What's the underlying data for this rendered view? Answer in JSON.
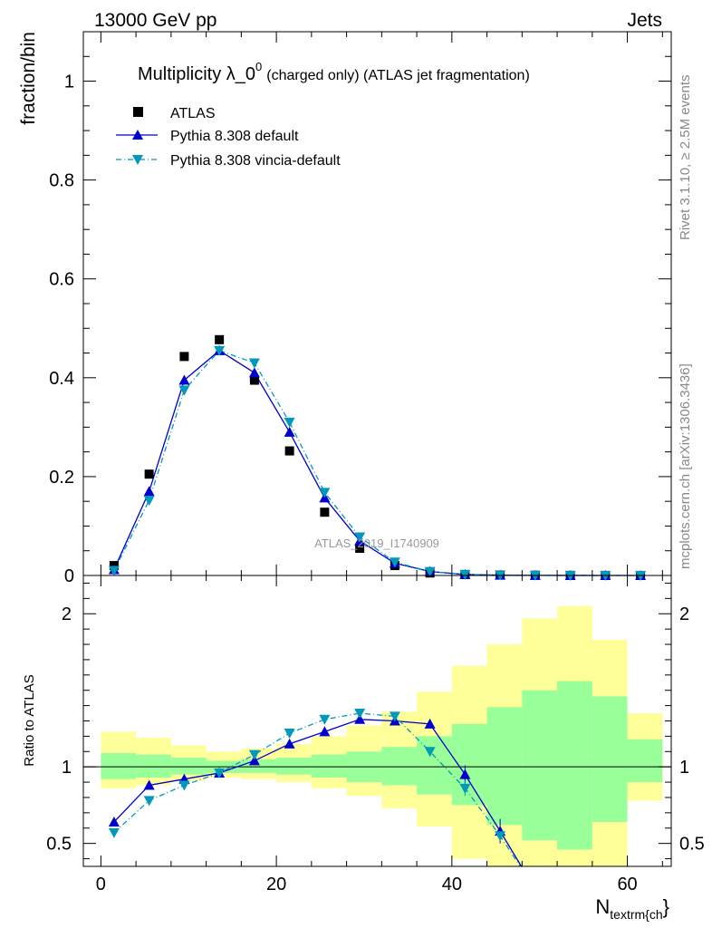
{
  "header": {
    "left": "13000 GeV pp",
    "right": "Jets"
  },
  "side_labels": {
    "rivet": "Rivet 3.1.10, ≥ 2.5M events",
    "mcplots": "mcplots.cern.ch [arXiv:1306.3436]"
  },
  "chart_data": {
    "type": "scatter",
    "title": "Multiplicity λ_0",
    "title_superscript": "0",
    "title_suffix": "(charged only) (ATLAS jet fragmentation)",
    "watermark": "ATLAS_2019_I1740909",
    "xlabel_main": "N",
    "xlabel_sub": "textrm{ch",
    "xlabel_close": "}",
    "ylabel_top": "fraction/bin",
    "ylabel_bottom": "Ratio to ATLAS",
    "xlim": [
      -2,
      65
    ],
    "ylim_top": [
      0,
      1.1
    ],
    "ylim_bottom": [
      0.35,
      2.25
    ],
    "x_ticks": [
      "0",
      "20",
      "40",
      "60"
    ],
    "y_ticks_top": [
      "0",
      "0.2",
      "0.4",
      "0.6",
      "0.8",
      "1"
    ],
    "y_ticks_bottom": [
      "0.5",
      "1",
      "2"
    ],
    "legend_position": "top-left",
    "series": [
      {
        "name": "ATLAS",
        "color": "#000000",
        "marker": "square",
        "x": [
          1.5,
          5.5,
          9.5,
          13.5,
          17.5,
          21.5,
          25.5,
          29.5,
          33.5,
          37.5,
          41.5,
          45.5,
          49.5,
          53.5,
          57.5,
          61.5
        ],
        "y": [
          0.02,
          0.205,
          0.443,
          0.477,
          0.395,
          0.252,
          0.128,
          0.055,
          0.02,
          0.005,
          0.002,
          0.001,
          0.0005,
          0.0003,
          0.0002,
          0.0001
        ]
      },
      {
        "name": "Pythia 8.308 default",
        "color": "#0000cc",
        "marker": "triangle-up",
        "line": "solid",
        "x": [
          1.5,
          5.5,
          9.5,
          13.5,
          17.5,
          21.5,
          25.5,
          29.5,
          33.5,
          37.5,
          41.5,
          45.5,
          49.5,
          53.5,
          57.5,
          61.5
        ],
        "y": [
          0.012,
          0.17,
          0.395,
          0.455,
          0.41,
          0.29,
          0.157,
          0.07,
          0.025,
          0.008,
          0.002,
          0.0006,
          0.0002,
          0.0001,
          5e-05,
          2e-05
        ]
      },
      {
        "name": "Pythia 8.308 vincia-default",
        "color": "#0099bb",
        "marker": "triangle-down",
        "line": "dashdot",
        "x": [
          1.5,
          5.5,
          9.5,
          13.5,
          17.5,
          21.5,
          25.5,
          29.5,
          33.5,
          37.5,
          41.5,
          45.5,
          49.5,
          53.5,
          57.5,
          61.5
        ],
        "y": [
          0.01,
          0.152,
          0.375,
          0.455,
          0.43,
          0.31,
          0.168,
          0.078,
          0.027,
          0.008,
          0.002,
          0.0006,
          0.0002,
          0.0001,
          5e-05,
          2e-05
        ]
      }
    ],
    "ratio": {
      "bin_edges": [
        0,
        4,
        8,
        12,
        16,
        20,
        24,
        28,
        32,
        36,
        40,
        44,
        48,
        52,
        56,
        60,
        64
      ],
      "band_green": [
        [
          0.92,
          1.09
        ],
        [
          0.93,
          1.08
        ],
        [
          0.95,
          1.06
        ],
        [
          0.96,
          1.04
        ],
        [
          0.96,
          1.05
        ],
        [
          0.95,
          1.06
        ],
        [
          0.93,
          1.08
        ],
        [
          0.9,
          1.1
        ],
        [
          0.88,
          1.13
        ],
        [
          0.82,
          1.2
        ],
        [
          0.75,
          1.28
        ],
        [
          0.62,
          1.39
        ],
        [
          0.52,
          1.5
        ],
        [
          0.46,
          1.56
        ],
        [
          0.64,
          1.46
        ],
        [
          0.9,
          1.18
        ]
      ],
      "band_yellow": [
        [
          0.86,
          1.23
        ],
        [
          0.88,
          1.19
        ],
        [
          0.91,
          1.14
        ],
        [
          0.93,
          1.1
        ],
        [
          0.92,
          1.12
        ],
        [
          0.9,
          1.15
        ],
        [
          0.86,
          1.2
        ],
        [
          0.81,
          1.27
        ],
        [
          0.73,
          1.36
        ],
        [
          0.61,
          1.49
        ],
        [
          0.4,
          1.66
        ],
        [
          0.32,
          1.8
        ],
        [
          0.3,
          1.97
        ],
        [
          0.3,
          2.05
        ],
        [
          0.3,
          1.83
        ],
        [
          0.78,
          1.35
        ]
      ],
      "default_y": [
        0.64,
        0.88,
        0.92,
        0.96,
        1.04,
        1.15,
        1.23,
        1.31,
        1.3,
        1.28,
        0.95,
        0.58,
        0.2,
        0.05,
        0.02,
        0.01
      ],
      "vincia_y": [
        0.57,
        0.78,
        0.88,
        0.96,
        1.08,
        1.22,
        1.31,
        1.35,
        1.33,
        1.1,
        0.86,
        0.55,
        0.2,
        0.05,
        0.02,
        0.01
      ]
    }
  }
}
